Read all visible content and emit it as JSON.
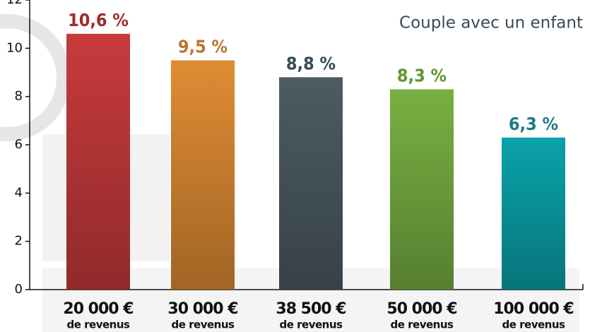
{
  "chart_data": {
    "type": "bar",
    "subtitle": "Couple avec un enfant",
    "categories": [
      "20 000 €",
      "30 000 €",
      "38 500 €",
      "50 000 €",
      "100 000 €"
    ],
    "category_sublabels": [
      "de revenus",
      "de revenus",
      "de revenus",
      "de revenus",
      "de revenus"
    ],
    "values": [
      10.6,
      9.5,
      8.8,
      8.3,
      6.3
    ],
    "value_labels": [
      "10,6 %",
      "9,5 %",
      "8,8 %",
      "8,3 %",
      "6,3 %"
    ],
    "colors": [
      "#c83a3c",
      "#e08c34",
      "#4c5c62",
      "#78b042",
      "#0aa2aa"
    ],
    "label_colors": [
      "#a22a2a",
      "#b8782a",
      "#3a4a55",
      "#5e9632",
      "#1a7c84"
    ],
    "ylim": [
      0,
      12
    ],
    "yticks": [
      0,
      2,
      4,
      6,
      8,
      10,
      12
    ]
  }
}
